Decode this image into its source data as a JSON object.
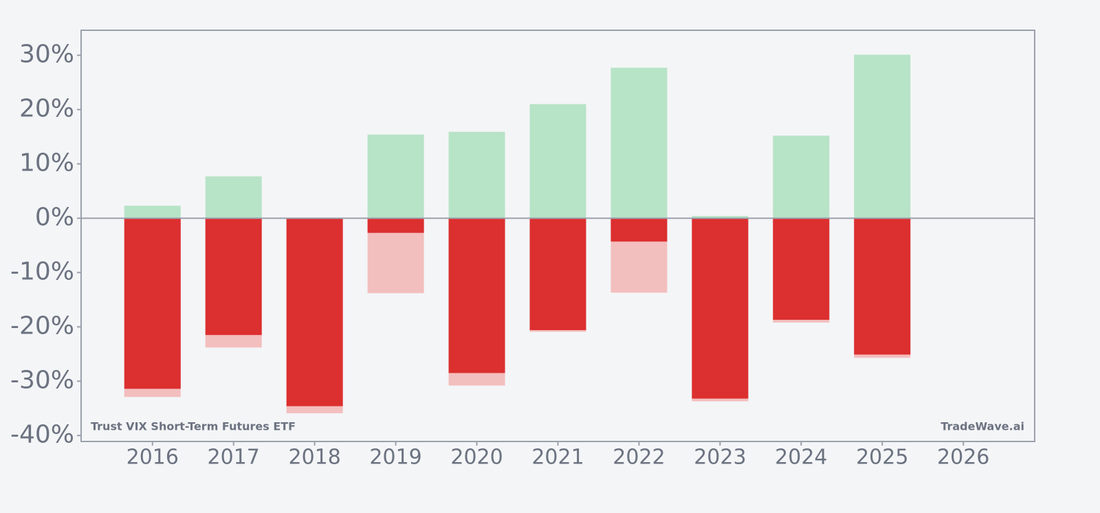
{
  "chart_data": {
    "type": "bar",
    "annotations": [
      "Trust VIX Short-Term Futures ETF",
      "TradeWave.ai"
    ],
    "categories": [
      "2016",
      "2017",
      "2018",
      "2019",
      "2020",
      "2021",
      "2022",
      "2023",
      "2024",
      "2025",
      "2026"
    ],
    "series": [
      {
        "color": "#f3bebe",
        "values": [
          -32.9,
          -23.8,
          -35.9,
          -13.8,
          -30.8,
          -20.9,
          -13.7,
          -33.7,
          -19.2,
          -25.7,
          null
        ]
      },
      {
        "color": "#dc2f2f",
        "values": [
          -31.4,
          -21.5,
          -34.6,
          -2.7,
          -28.5,
          -20.6,
          -4.3,
          -33.2,
          -18.7,
          -25.1,
          null
        ]
      },
      {
        "color": "#b7e3c7",
        "values": [
          2.3,
          7.7,
          0.1,
          15.4,
          15.9,
          21.0,
          27.7,
          0.4,
          15.2,
          30.1,
          null
        ]
      }
    ],
    "ylim": [
      -41.1,
      34.6
    ],
    "yticks": [
      {
        "value": -40,
        "label": "-40%"
      },
      {
        "value": -30,
        "label": "-30%"
      },
      {
        "value": -20,
        "label": "-20%"
      },
      {
        "value": -10,
        "label": "-10%"
      },
      {
        "value": 0,
        "label": "0%"
      },
      {
        "value": 10,
        "label": "10%"
      },
      {
        "value": 20,
        "label": "20%"
      },
      {
        "value": 30,
        "label": "30%"
      }
    ]
  }
}
